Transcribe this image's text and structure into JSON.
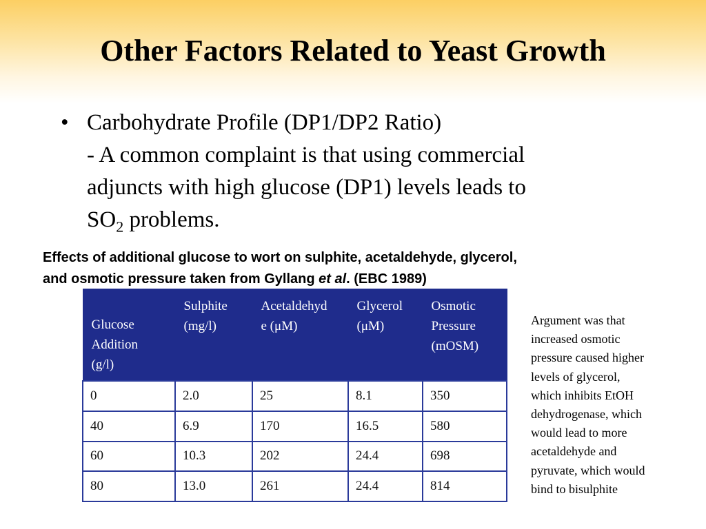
{
  "slide": {
    "title": "Other Factors Related to Yeast Growth"
  },
  "bullet": {
    "marker": "•",
    "lines": [
      "Carbohydrate Profile (DP1/DP2 Ratio)",
      "-  A common complaint is that using commercial",
      "adjuncts with high glucose (DP1) levels leads to"
    ],
    "last_line_prefix": "SO",
    "last_line_subscript": "2",
    "last_line_suffix": " problems."
  },
  "caption": {
    "line1": "Effects of additional glucose to wort on sulphite, acetaldehyde, glycerol,",
    "line2_start": "and osmotic pressure taken from Gyllang ",
    "line2_italic": "et al",
    "line2_end": ". (EBC 1989)"
  },
  "table": {
    "headers": [
      [
        "Glucose",
        "Addition",
        "(g/l)"
      ],
      [
        "Sulphite",
        "(mg/l)"
      ],
      [
        "Acetaldehyd",
        "e (μM)"
      ],
      [
        "Glycerol",
        "(μM)"
      ],
      [
        "Osmotic",
        "Pressure",
        "(mOSM)"
      ]
    ],
    "rows": [
      [
        "0",
        "2.0",
        "25",
        "8.1",
        "350"
      ],
      [
        "40",
        "6.9",
        "170",
        "16.5",
        "580"
      ],
      [
        "60",
        "10.3",
        "202",
        "24.4",
        "698"
      ],
      [
        "80",
        "13.0",
        "261",
        "24.4",
        "814"
      ]
    ]
  },
  "side_note": {
    "lines": [
      "Argument was that",
      "increased osmotic",
      "pressure caused higher",
      "levels of glycerol,",
      "which inhibits EtOH",
      "dehydrogenase, which",
      "would lead to more",
      "acetaldehyde and",
      "pyruvate, which would",
      "bind to bisulphite"
    ]
  },
  "colors": {
    "header_gradient_top": "#fccf63",
    "table_header_bg": "#1f2c8c",
    "table_border": "#2a3a9a"
  }
}
